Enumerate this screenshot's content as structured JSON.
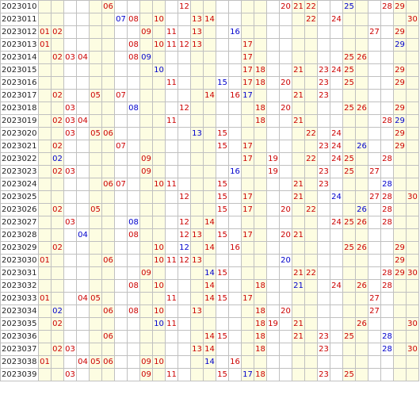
{
  "colors": {
    "red": "#cc0000",
    "blue": "#0000cc",
    "band": "#fdfde2",
    "grid": "#c0c0c0"
  },
  "columns": 30,
  "rows": [
    {
      "issue": "2023010",
      "cells": [
        {
          "n": "06",
          "c": "r"
        },
        {
          "n": "12",
          "c": "r"
        },
        {
          "n": "20",
          "c": "r"
        },
        {
          "n": "21",
          "c": "r"
        },
        {
          "n": "22",
          "c": "r"
        },
        {
          "n": "25",
          "c": "b"
        },
        {
          "n": "28",
          "c": "r"
        },
        {
          "n": "29",
          "c": "r"
        }
      ]
    },
    {
      "issue": "2023011",
      "cells": [
        {
          "n": "07",
          "c": "b"
        },
        {
          "n": "08",
          "c": "r"
        },
        {
          "n": "10",
          "c": "r"
        },
        {
          "n": "13",
          "c": "r"
        },
        {
          "n": "14",
          "c": "r"
        },
        {
          "n": "22",
          "c": "r"
        },
        {
          "n": "24",
          "c": "r"
        },
        {
          "n": "30",
          "c": "r"
        }
      ]
    },
    {
      "issue": "2023012",
      "cells": [
        {
          "n": "01",
          "c": "r"
        },
        {
          "n": "02",
          "c": "r"
        },
        {
          "n": "09",
          "c": "r"
        },
        {
          "n": "11",
          "c": "r"
        },
        {
          "n": "13",
          "c": "r"
        },
        {
          "n": "16",
          "c": "b"
        },
        {
          "n": "27",
          "c": "r"
        },
        {
          "n": "29",
          "c": "r"
        }
      ]
    },
    {
      "issue": "2023013",
      "cells": [
        {
          "n": "01",
          "c": "r"
        },
        {
          "n": "08",
          "c": "r"
        },
        {
          "n": "10",
          "c": "r"
        },
        {
          "n": "11",
          "c": "r"
        },
        {
          "n": "12",
          "c": "r"
        },
        {
          "n": "13",
          "c": "r"
        },
        {
          "n": "17",
          "c": "r"
        },
        {
          "n": "29",
          "c": "b"
        }
      ]
    },
    {
      "issue": "2023014",
      "cells": [
        {
          "n": "02",
          "c": "r"
        },
        {
          "n": "03",
          "c": "r"
        },
        {
          "n": "04",
          "c": "r"
        },
        {
          "n": "08",
          "c": "r"
        },
        {
          "n": "09",
          "c": "b"
        },
        {
          "n": "17",
          "c": "r"
        },
        {
          "n": "25",
          "c": "r"
        },
        {
          "n": "26",
          "c": "r"
        }
      ]
    },
    {
      "issue": "2023015",
      "cells": [
        {
          "n": "10",
          "c": "b"
        },
        {
          "n": "17",
          "c": "r"
        },
        {
          "n": "18",
          "c": "r"
        },
        {
          "n": "21",
          "c": "r"
        },
        {
          "n": "23",
          "c": "r"
        },
        {
          "n": "24",
          "c": "r"
        },
        {
          "n": "25",
          "c": "r"
        },
        {
          "n": "29",
          "c": "r"
        }
      ]
    },
    {
      "issue": "2023016",
      "cells": [
        {
          "n": "11",
          "c": "r"
        },
        {
          "n": "15",
          "c": "b"
        },
        {
          "n": "17",
          "c": "r"
        },
        {
          "n": "18",
          "c": "r"
        },
        {
          "n": "20",
          "c": "r"
        },
        {
          "n": "23",
          "c": "r"
        },
        {
          "n": "25",
          "c": "r"
        },
        {
          "n": "29",
          "c": "r"
        }
      ]
    },
    {
      "issue": "2023017",
      "cells": [
        {
          "n": "02",
          "c": "r"
        },
        {
          "n": "05",
          "c": "r"
        },
        {
          "n": "07",
          "c": "r"
        },
        {
          "n": "14",
          "c": "r"
        },
        {
          "n": "16",
          "c": "r"
        },
        {
          "n": "17",
          "c": "b"
        },
        {
          "n": "21",
          "c": "r"
        },
        {
          "n": "23",
          "c": "r"
        }
      ]
    },
    {
      "issue": "2023018",
      "cells": [
        {
          "n": "03",
          "c": "r"
        },
        {
          "n": "08",
          "c": "b"
        },
        {
          "n": "12",
          "c": "r"
        },
        {
          "n": "18",
          "c": "r"
        },
        {
          "n": "20",
          "c": "r"
        },
        {
          "n": "25",
          "c": "r"
        },
        {
          "n": "26",
          "c": "r"
        },
        {
          "n": "29",
          "c": "r"
        }
      ]
    },
    {
      "issue": "2023019",
      "cells": [
        {
          "n": "02",
          "c": "r"
        },
        {
          "n": "03",
          "c": "r"
        },
        {
          "n": "04",
          "c": "r"
        },
        {
          "n": "11",
          "c": "r"
        },
        {
          "n": "18",
          "c": "r"
        },
        {
          "n": "21",
          "c": "r"
        },
        {
          "n": "28",
          "c": "r"
        },
        {
          "n": "29",
          "c": "b"
        }
      ]
    },
    {
      "issue": "2023020",
      "cells": [
        {
          "n": "03",
          "c": "r"
        },
        {
          "n": "05",
          "c": "r"
        },
        {
          "n": "06",
          "c": "r"
        },
        {
          "n": "13",
          "c": "b"
        },
        {
          "n": "15",
          "c": "r"
        },
        {
          "n": "22",
          "c": "r"
        },
        {
          "n": "24",
          "c": "r"
        },
        {
          "n": "29",
          "c": "r"
        }
      ]
    },
    {
      "issue": "2023021",
      "cells": [
        {
          "n": "02",
          "c": "r"
        },
        {
          "n": "07",
          "c": "r"
        },
        {
          "n": "15",
          "c": "r"
        },
        {
          "n": "17",
          "c": "r"
        },
        {
          "n": "23",
          "c": "r"
        },
        {
          "n": "24",
          "c": "r"
        },
        {
          "n": "26",
          "c": "b"
        },
        {
          "n": "29",
          "c": "r"
        }
      ]
    },
    {
      "issue": "2023022",
      "cells": [
        {
          "n": "02",
          "c": "b"
        },
        {
          "n": "09",
          "c": "r"
        },
        {
          "n": "17",
          "c": "r"
        },
        {
          "n": "19",
          "c": "r"
        },
        {
          "n": "22",
          "c": "r"
        },
        {
          "n": "24",
          "c": "r"
        },
        {
          "n": "25",
          "c": "r"
        },
        {
          "n": "28",
          "c": "r"
        }
      ]
    },
    {
      "issue": "2023023",
      "cells": [
        {
          "n": "02",
          "c": "r"
        },
        {
          "n": "03",
          "c": "r"
        },
        {
          "n": "09",
          "c": "r"
        },
        {
          "n": "16",
          "c": "b"
        },
        {
          "n": "19",
          "c": "r"
        },
        {
          "n": "23",
          "c": "r"
        },
        {
          "n": "25",
          "c": "r"
        },
        {
          "n": "27",
          "c": "r"
        }
      ]
    },
    {
      "issue": "2023024",
      "cells": [
        {
          "n": "06",
          "c": "r"
        },
        {
          "n": "07",
          "c": "r"
        },
        {
          "n": "10",
          "c": "r"
        },
        {
          "n": "11",
          "c": "r"
        },
        {
          "n": "15",
          "c": "r"
        },
        {
          "n": "21",
          "c": "r"
        },
        {
          "n": "23",
          "c": "r"
        },
        {
          "n": "28",
          "c": "b"
        }
      ]
    },
    {
      "issue": "2023025",
      "cells": [
        {
          "n": "12",
          "c": "r"
        },
        {
          "n": "15",
          "c": "r"
        },
        {
          "n": "17",
          "c": "r"
        },
        {
          "n": "21",
          "c": "r"
        },
        {
          "n": "24",
          "c": "b"
        },
        {
          "n": "27",
          "c": "r"
        },
        {
          "n": "28",
          "c": "r"
        },
        {
          "n": "30",
          "c": "r"
        }
      ]
    },
    {
      "issue": "2023026",
      "cells": [
        {
          "n": "02",
          "c": "r"
        },
        {
          "n": "05",
          "c": "r"
        },
        {
          "n": "15",
          "c": "r"
        },
        {
          "n": "17",
          "c": "r"
        },
        {
          "n": "20",
          "c": "r"
        },
        {
          "n": "22",
          "c": "r"
        },
        {
          "n": "26",
          "c": "b"
        },
        {
          "n": "28",
          "c": "r"
        }
      ]
    },
    {
      "issue": "2023027",
      "cells": [
        {
          "n": "03",
          "c": "r"
        },
        {
          "n": "08",
          "c": "b"
        },
        {
          "n": "12",
          "c": "r"
        },
        {
          "n": "14",
          "c": "r"
        },
        {
          "n": "24",
          "c": "r"
        },
        {
          "n": "25",
          "c": "r"
        },
        {
          "n": "26",
          "c": "r"
        },
        {
          "n": "28",
          "c": "r"
        }
      ]
    },
    {
      "issue": "2023028",
      "cells": [
        {
          "n": "04",
          "c": "b"
        },
        {
          "n": "08",
          "c": "r"
        },
        {
          "n": "12",
          "c": "r"
        },
        {
          "n": "13",
          "c": "r"
        },
        {
          "n": "15",
          "c": "r"
        },
        {
          "n": "17",
          "c": "r"
        },
        {
          "n": "20",
          "c": "r"
        },
        {
          "n": "21",
          "c": "r"
        }
      ]
    },
    {
      "issue": "2023029",
      "cells": [
        {
          "n": "02",
          "c": "r"
        },
        {
          "n": "10",
          "c": "r"
        },
        {
          "n": "12",
          "c": "b"
        },
        {
          "n": "14",
          "c": "r"
        },
        {
          "n": "16",
          "c": "r"
        },
        {
          "n": "25",
          "c": "r"
        },
        {
          "n": "26",
          "c": "r"
        },
        {
          "n": "29",
          "c": "r"
        }
      ]
    },
    {
      "issue": "2023030",
      "cells": [
        {
          "n": "01",
          "c": "r"
        },
        {
          "n": "06",
          "c": "r"
        },
        {
          "n": "10",
          "c": "r"
        },
        {
          "n": "11",
          "c": "r"
        },
        {
          "n": "12",
          "c": "r"
        },
        {
          "n": "13",
          "c": "r"
        },
        {
          "n": "20",
          "c": "b"
        },
        {
          "n": "29",
          "c": "r"
        }
      ]
    },
    {
      "issue": "2023031",
      "cells": [
        {
          "n": "09",
          "c": "r"
        },
        {
          "n": "14",
          "c": "b"
        },
        {
          "n": "15",
          "c": "r"
        },
        {
          "n": "21",
          "c": "r"
        },
        {
          "n": "22",
          "c": "r"
        },
        {
          "n": "28",
          "c": "r"
        },
        {
          "n": "29",
          "c": "r"
        },
        {
          "n": "30",
          "c": "r"
        }
      ]
    },
    {
      "issue": "2023032",
      "cells": [
        {
          "n": "08",
          "c": "r"
        },
        {
          "n": "10",
          "c": "r"
        },
        {
          "n": "14",
          "c": "r"
        },
        {
          "n": "18",
          "c": "r"
        },
        {
          "n": "21",
          "c": "b"
        },
        {
          "n": "24",
          "c": "r"
        },
        {
          "n": "26",
          "c": "r"
        },
        {
          "n": "28",
          "c": "r"
        }
      ]
    },
    {
      "issue": "2023033",
      "cells": [
        {
          "n": "01",
          "c": "r"
        },
        {
          "n": "04",
          "c": "r"
        },
        {
          "n": "05",
          "c": "r"
        },
        {
          "n": "11",
          "c": "r"
        },
        {
          "n": "14",
          "c": "r"
        },
        {
          "n": "15",
          "c": "r"
        },
        {
          "n": "17",
          "c": "r"
        },
        {
          "n": "27",
          "c": "r"
        }
      ]
    },
    {
      "issue": "2023034",
      "cells": [
        {
          "n": "02",
          "c": "b"
        },
        {
          "n": "06",
          "c": "r"
        },
        {
          "n": "08",
          "c": "r"
        },
        {
          "n": "10",
          "c": "r"
        },
        {
          "n": "13",
          "c": "r"
        },
        {
          "n": "18",
          "c": "r"
        },
        {
          "n": "20",
          "c": "r"
        },
        {
          "n": "27",
          "c": "r"
        }
      ]
    },
    {
      "issue": "2023035",
      "cells": [
        {
          "n": "02",
          "c": "r"
        },
        {
          "n": "10",
          "c": "b"
        },
        {
          "n": "11",
          "c": "r"
        },
        {
          "n": "18",
          "c": "r"
        },
        {
          "n": "19",
          "c": "r"
        },
        {
          "n": "21",
          "c": "r"
        },
        {
          "n": "26",
          "c": "r"
        },
        {
          "n": "30",
          "c": "r"
        }
      ]
    },
    {
      "issue": "2023036",
      "cells": [
        {
          "n": "06",
          "c": "r"
        },
        {
          "n": "14",
          "c": "r"
        },
        {
          "n": "15",
          "c": "r"
        },
        {
          "n": "18",
          "c": "r"
        },
        {
          "n": "21",
          "c": "r"
        },
        {
          "n": "23",
          "c": "r"
        },
        {
          "n": "25",
          "c": "r"
        },
        {
          "n": "28",
          "c": "b"
        }
      ]
    },
    {
      "issue": "2023037",
      "cells": [
        {
          "n": "02",
          "c": "r"
        },
        {
          "n": "03",
          "c": "r"
        },
        {
          "n": "13",
          "c": "r"
        },
        {
          "n": "14",
          "c": "r"
        },
        {
          "n": "18",
          "c": "r"
        },
        {
          "n": "23",
          "c": "r"
        },
        {
          "n": "28",
          "c": "b"
        },
        {
          "n": "30",
          "c": "r"
        }
      ]
    },
    {
      "issue": "2023038",
      "cells": [
        {
          "n": "01",
          "c": "r"
        },
        {
          "n": "04",
          "c": "r"
        },
        {
          "n": "05",
          "c": "r"
        },
        {
          "n": "06",
          "c": "r"
        },
        {
          "n": "09",
          "c": "r"
        },
        {
          "n": "10",
          "c": "r"
        },
        {
          "n": "14",
          "c": "b"
        },
        {
          "n": "16",
          "c": "r"
        }
      ]
    },
    {
      "issue": "2023039",
      "cells": [
        {
          "n": "03",
          "c": "r"
        },
        {
          "n": "09",
          "c": "r"
        },
        {
          "n": "11",
          "c": "r"
        },
        {
          "n": "15",
          "c": "r"
        },
        {
          "n": "17",
          "c": "b"
        },
        {
          "n": "18",
          "c": "r"
        },
        {
          "n": "23",
          "c": "r"
        },
        {
          "n": "25",
          "c": "r"
        }
      ]
    }
  ]
}
